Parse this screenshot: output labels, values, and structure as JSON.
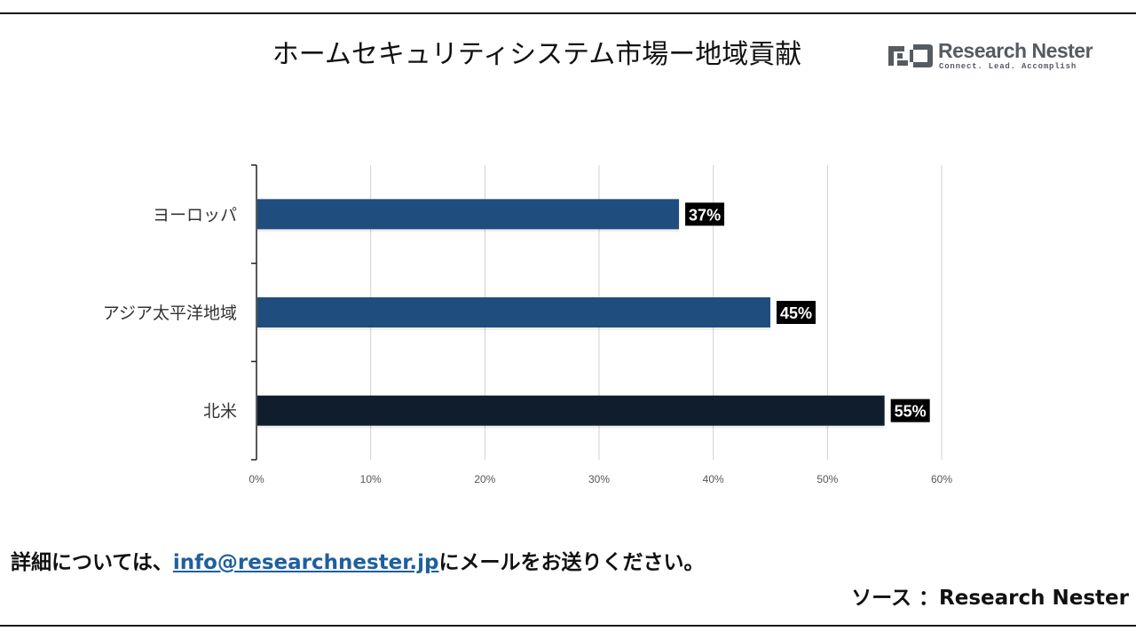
{
  "header": {
    "title": "ホームセキュリティシステム市場ー地域貢献"
  },
  "logo": {
    "name": "Research Nester",
    "tagline": "Connect. Lead. Accomplish"
  },
  "chart_data": {
    "type": "bar",
    "orientation": "horizontal",
    "title": "ホームセキュリティシステム市場ー地域貢献",
    "categories": [
      "ヨーロッパ",
      "アジア太平洋地域",
      "北米"
    ],
    "values": [
      37,
      45,
      55
    ],
    "value_labels": [
      "37%",
      "45%",
      "55%"
    ],
    "bar_colors": [
      "#1f4e7e",
      "#1f4e7e",
      "#0f1d2c"
    ],
    "xlim": [
      0,
      60
    ],
    "x_ticks": [
      0,
      10,
      20,
      30,
      40,
      50,
      60
    ],
    "x_tick_labels": [
      "0%",
      "10%",
      "20%",
      "30%",
      "40%",
      "50%",
      "60%"
    ],
    "xlabel": "",
    "ylabel": "",
    "grid": "vertical",
    "legend": "none"
  },
  "footer": {
    "prefix": "詳細については、",
    "email": "info@researchnester.jp",
    "suffix": "にメールをお送りください。",
    "source": "ソース ：Research Nester"
  },
  "colors": {
    "accent_blue": "#1f4e7e",
    "dark_navy": "#0f1d2c",
    "link": "#1f5f9e",
    "label_bg": "#000000",
    "grid": "#d0d0d0"
  }
}
